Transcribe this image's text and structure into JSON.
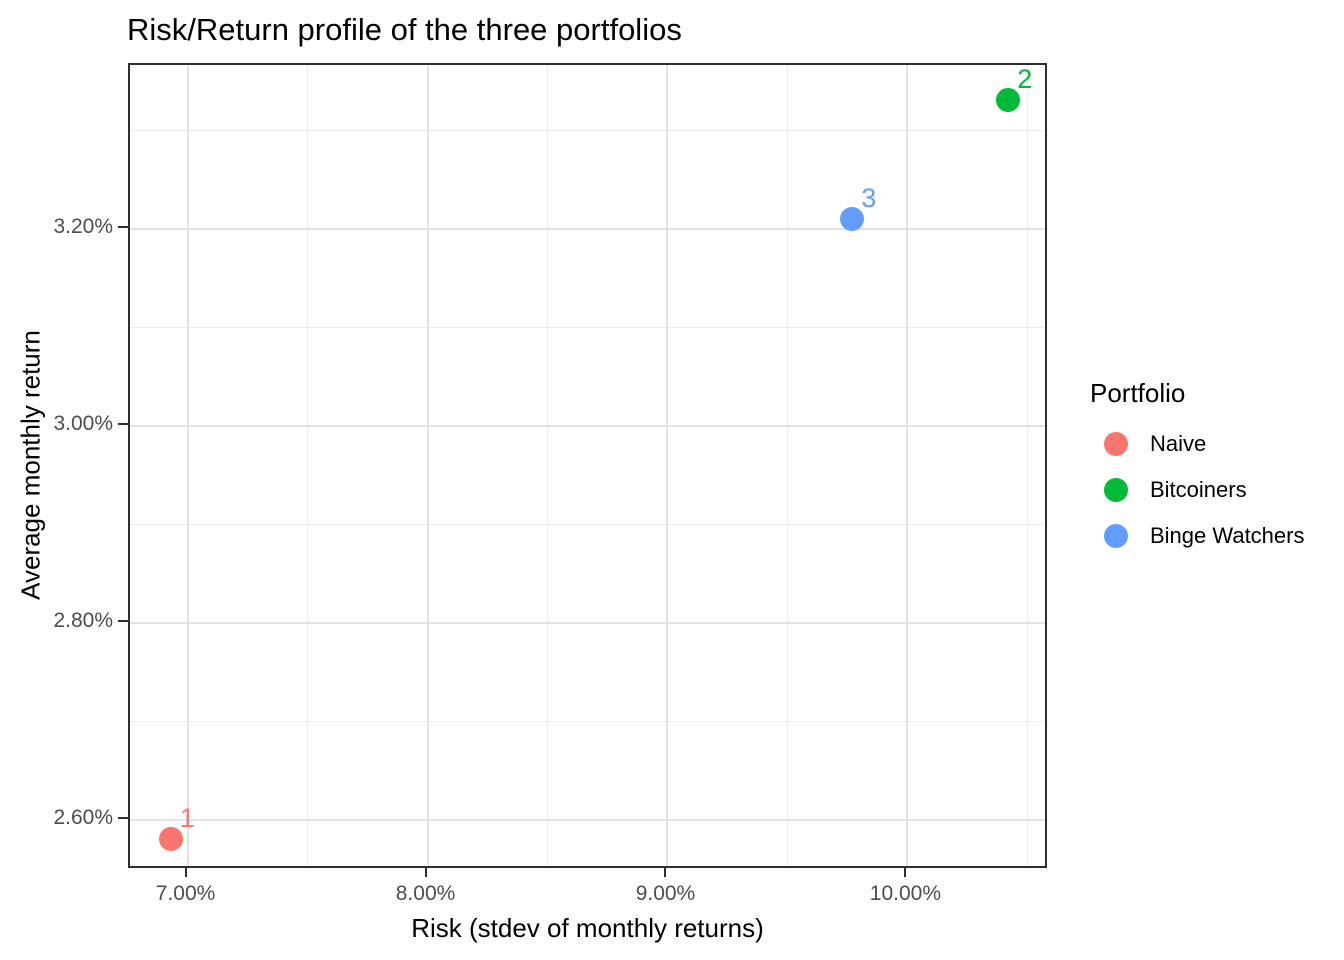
{
  "title": "Risk/Return profile of the three portfolios",
  "chart_data": {
    "type": "scatter",
    "title": "Risk/Return profile of the three portfolios",
    "xlabel": "Risk (stdev of monthly returns)",
    "ylabel": "Average monthly return",
    "xlim": [
      6.76,
      10.59
    ],
    "ylim": [
      2.549,
      3.366
    ],
    "x_major_ticks": [
      7.0,
      8.0,
      9.0,
      10.0
    ],
    "x_tick_labels": [
      "7.00%",
      "8.00%",
      "9.00%",
      "10.00%"
    ],
    "x_minor_ticks": [
      7.5,
      8.5,
      9.5,
      10.5
    ],
    "y_major_ticks": [
      2.6,
      2.8,
      3.0,
      3.2
    ],
    "y_tick_labels": [
      "2.60%",
      "2.80%",
      "3.00%",
      "3.20%"
    ],
    "y_minor_ticks": [
      2.7,
      2.9,
      3.1,
      3.3
    ],
    "grid": true,
    "points": [
      {
        "label": "1",
        "name": "Naive",
        "x": 6.93,
        "y": 2.58,
        "color": "#F8766D"
      },
      {
        "label": "2",
        "name": "Bitcoiners",
        "x": 10.42,
        "y": 3.33,
        "color": "#00BA38"
      },
      {
        "label": "3",
        "name": "Binge Watchers",
        "x": 9.77,
        "y": 3.21,
        "color": "#619CFF"
      }
    ],
    "legend": {
      "title": "Portfolio",
      "position": "right",
      "items": [
        {
          "label": "Naive",
          "color": "#F8766D"
        },
        {
          "label": "Bitcoiners",
          "color": "#00BA38"
        },
        {
          "label": "Binge Watchers",
          "color": "#619CFF"
        }
      ]
    }
  }
}
